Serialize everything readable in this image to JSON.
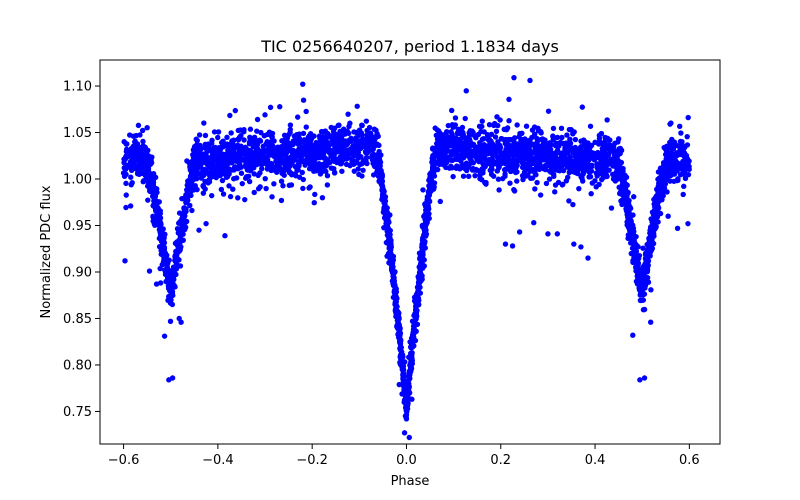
{
  "chart_data": {
    "type": "scatter",
    "title": "TIC 0256640207, period 1.1834 days",
    "xlabel": "Phase",
    "ylabel": "Normalized PDC flux",
    "xlim": [
      -0.65,
      0.665
    ],
    "ylim": [
      0.715,
      1.128
    ],
    "xticks": [
      -0.6,
      -0.4,
      -0.2,
      0.0,
      0.2,
      0.4,
      0.6
    ],
    "xtick_labels": [
      "−0.6",
      "−0.4",
      "−0.2",
      "0.0",
      "0.2",
      "0.4",
      "0.6"
    ],
    "yticks": [
      0.75,
      0.8,
      0.85,
      0.9,
      0.95,
      1.0,
      1.05,
      1.1
    ],
    "ytick_labels": [
      "0.75",
      "0.80",
      "0.85",
      "0.90",
      "0.95",
      "1.00",
      "1.05",
      "1.10"
    ],
    "grid": false,
    "marker_color": "#0000ff",
    "phase_range": [
      -0.6,
      0.6
    ],
    "components": {
      "primary_eclipse": {
        "center": 0.0,
        "min_flux": 0.755,
        "half_width": 0.06
      },
      "secondary_eclipse": {
        "centers": [
          -0.5,
          0.5
        ],
        "min_flux": 0.875,
        "half_width": 0.055
      },
      "out_of_eclipse_level": [
        1.02,
        1.035
      ],
      "scatter_sigma": 0.012
    },
    "outliers": [
      [
        -0.597,
        0.912
      ],
      [
        -0.585,
        0.971
      ],
      [
        -0.545,
        0.901
      ],
      [
        -0.53,
        0.887
      ],
      [
        -0.513,
        0.831
      ],
      [
        -0.504,
        0.784
      ],
      [
        -0.496,
        0.786
      ],
      [
        -0.482,
        0.85
      ],
      [
        -0.478,
        0.846
      ],
      [
        -0.44,
        0.945
      ],
      [
        -0.425,
        0.952
      ],
      [
        -0.385,
        0.939
      ],
      [
        -0.3,
        1.069
      ],
      [
        -0.22,
        1.102
      ],
      [
        -0.12,
        1.06
      ],
      [
        0.21,
        0.93
      ],
      [
        0.225,
        0.928
      ],
      [
        0.24,
        0.943
      ],
      [
        0.27,
        0.953
      ],
      [
        0.3,
        0.941
      ],
      [
        0.32,
        0.941
      ],
      [
        0.355,
        0.93
      ],
      [
        0.37,
        0.927
      ],
      [
        0.385,
        0.915
      ],
      [
        0.48,
        0.832
      ],
      [
        0.495,
        0.784
      ],
      [
        0.505,
        0.786
      ],
      [
        0.518,
        0.846
      ],
      [
        0.555,
        0.96
      ],
      [
        0.575,
        0.947
      ],
      [
        0.597,
        0.952
      ],
      [
        0.228,
        1.109
      ],
      [
        0.262,
        1.106
      ],
      [
        0.006,
        0.722
      ],
      [
        -0.004,
        0.727
      ]
    ]
  }
}
